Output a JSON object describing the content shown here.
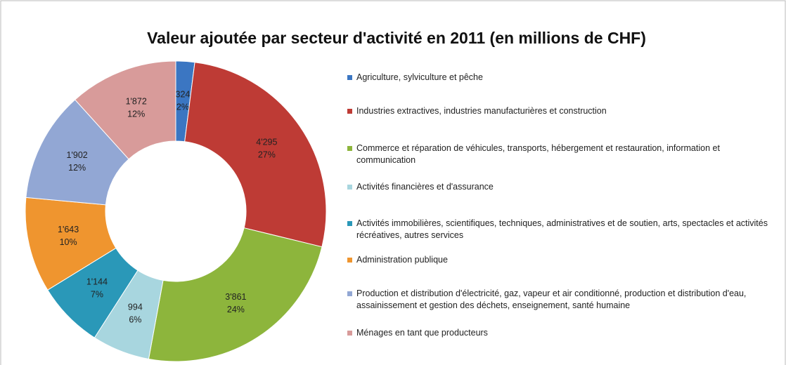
{
  "chart_data": {
    "type": "donut",
    "title": "Valeur ajoutée par secteur d'activité en 2011 (en millions de CHF)",
    "categories": [
      "Agriculture, sylviculture et pêche",
      "Industries extractives, industries manufacturières et construction",
      "Commerce et réparation de véhicules, transports, hébergement et restauration, information et communication",
      "Activités financières et d'assurance",
      "Activités immobilières, scientifiques, techniques, administratives et de soutien, arts, spectacles et activités récréatives, autres services",
      "Administration publique",
      "Production et distribution d'électricité, gaz, vapeur et air conditionné, production et distribution d'eau, assainissement et gestion des déchets, enseignement, santé humaine",
      "Ménages en tant que producteurs"
    ],
    "values": [
      324,
      4295,
      3861,
      994,
      1144,
      1643,
      1902,
      1872
    ],
    "value_labels": [
      "324",
      "4'295",
      "3'861",
      "994",
      "1'144",
      "1'643",
      "1'902",
      "1'872"
    ],
    "percent_labels": [
      "2%",
      "27%",
      "24%",
      "6%",
      "7%",
      "10%",
      "12%",
      "12%"
    ],
    "colors": [
      "#3b76c2",
      "#be3b35",
      "#8db53c",
      "#a8d6df",
      "#2a98b8",
      "#ef952f",
      "#92a7d4",
      "#d89b9a"
    ],
    "legend": "right"
  }
}
